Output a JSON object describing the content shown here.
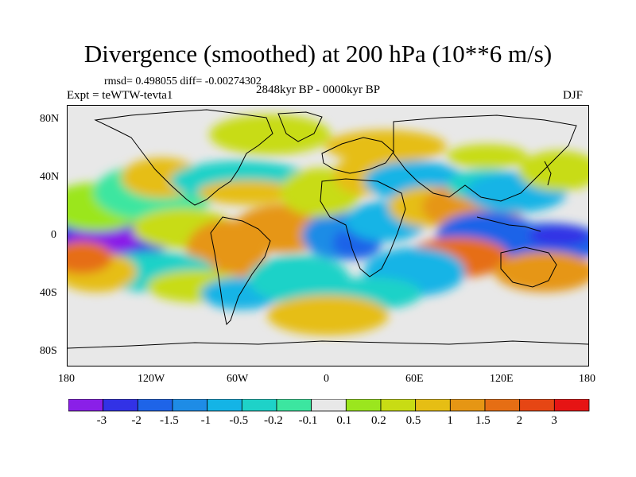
{
  "title": "Divergence (smoothed) at 200 hPa (10**6 m/s)",
  "stats": "rmsd= 0.498055 diff= -0.00274302",
  "experiment": "Expt = teWTW-tevta1",
  "period": "2848kyr BP - 0000kyr BP",
  "season": "DJF",
  "lat_ticks": [
    "80N",
    "40N",
    "0",
    "40S",
    "80S"
  ],
  "lon_ticks": [
    "180",
    "120W",
    "60W",
    "0",
    "60E",
    "120E",
    "180"
  ],
  "colorbar": {
    "labels": [
      "-3",
      "-2",
      "-1.5",
      "-1",
      "-0.5",
      "-0.2",
      "-0.1",
      "0.1",
      "0.2",
      "0.5",
      "1",
      "1.5",
      "2",
      "3"
    ],
    "colors": [
      "#8a1fe8",
      "#3232e6",
      "#1e64e8",
      "#1e8ce6",
      "#14b4e6",
      "#1ed2c8",
      "#3ce6a0",
      "#e8e8e8",
      "#9be61e",
      "#c8dc14",
      "#e6be14",
      "#e69614",
      "#e66e14",
      "#e64614",
      "#e61414"
    ]
  },
  "map": {
    "background": "#e8e8e8",
    "blobs": [
      {
        "lon": -150,
        "lat": 0,
        "rx": 32,
        "ry": 12,
        "level": 1
      },
      {
        "lon": -155,
        "lat": -3,
        "rx": 18,
        "ry": 7,
        "level": 0
      },
      {
        "lon": -160,
        "lat": 20,
        "rx": 25,
        "ry": 12,
        "level": 8
      },
      {
        "lon": -120,
        "lat": 30,
        "rx": 30,
        "ry": 14,
        "level": 6
      },
      {
        "lon": -115,
        "lat": 40,
        "rx": 20,
        "ry": 10,
        "level": 10
      },
      {
        "lon": -60,
        "lat": 38,
        "rx": 35,
        "ry": 10,
        "level": 5
      },
      {
        "lon": -55,
        "lat": 30,
        "rx": 25,
        "ry": 6,
        "level": 10
      },
      {
        "lon": -100,
        "lat": 5,
        "rx": 25,
        "ry": 10,
        "level": 9
      },
      {
        "lon": -70,
        "lat": -10,
        "rx": 20,
        "ry": 15,
        "level": 11
      },
      {
        "lon": -120,
        "lat": -25,
        "rx": 30,
        "ry": 10,
        "level": 5
      },
      {
        "lon": -160,
        "lat": -25,
        "rx": 20,
        "ry": 10,
        "level": 10
      },
      {
        "lon": -90,
        "lat": -35,
        "rx": 25,
        "ry": 8,
        "level": 9
      },
      {
        "lon": -60,
        "lat": -40,
        "rx": 20,
        "ry": 8,
        "level": 4
      },
      {
        "lon": -30,
        "lat": 5,
        "rx": 25,
        "ry": 12,
        "level": 11
      },
      {
        "lon": 10,
        "lat": 0,
        "rx": 20,
        "ry": 12,
        "level": 3
      },
      {
        "lon": 20,
        "lat": -5,
        "rx": 12,
        "ry": 8,
        "level": 2
      },
      {
        "lon": 40,
        "lat": 10,
        "rx": 20,
        "ry": 10,
        "level": 4
      },
      {
        "lon": -5,
        "lat": 30,
        "rx": 20,
        "ry": 12,
        "level": 9
      },
      {
        "lon": 25,
        "lat": 42,
        "rx": 15,
        "ry": 10,
        "level": 10
      },
      {
        "lon": 60,
        "lat": 38,
        "rx": 25,
        "ry": 10,
        "level": 4
      },
      {
        "lon": 70,
        "lat": 20,
        "rx": 20,
        "ry": 10,
        "level": 10
      },
      {
        "lon": 100,
        "lat": 20,
        "rx": 25,
        "ry": 12,
        "level": 11
      },
      {
        "lon": 110,
        "lat": 35,
        "rx": 20,
        "ry": 8,
        "level": 5
      },
      {
        "lon": 130,
        "lat": 30,
        "rx": 25,
        "ry": 10,
        "level": 4
      },
      {
        "lon": 110,
        "lat": 0,
        "rx": 25,
        "ry": 12,
        "level": 2
      },
      {
        "lon": 150,
        "lat": -5,
        "rx": 30,
        "ry": 10,
        "level": 2
      },
      {
        "lon": 160,
        "lat": 0,
        "rx": 15,
        "ry": 5,
        "level": 1
      },
      {
        "lon": 90,
        "lat": -15,
        "rx": 25,
        "ry": 10,
        "level": 12
      },
      {
        "lon": 150,
        "lat": -25,
        "rx": 25,
        "ry": 10,
        "level": 11
      },
      {
        "lon": 60,
        "lat": -25,
        "rx": 25,
        "ry": 12,
        "level": 4
      },
      {
        "lon": 30,
        "lat": -40,
        "rx": 25,
        "ry": 8,
        "level": 5
      },
      {
        "lon": -20,
        "lat": -30,
        "rx": 25,
        "ry": 12,
        "level": 5
      },
      {
        "lon": 0,
        "lat": -55,
        "rx": 30,
        "ry": 10,
        "level": 10
      },
      {
        "lon": -40,
        "lat": 70,
        "rx": 30,
        "ry": 10,
        "level": 9
      },
      {
        "lon": 40,
        "lat": 62,
        "rx": 30,
        "ry": 8,
        "level": 10
      },
      {
        "lon": 110,
        "lat": 55,
        "rx": 20,
        "ry": 6,
        "level": 9
      },
      {
        "lon": 160,
        "lat": 45,
        "rx": 20,
        "ry": 10,
        "level": 9
      },
      {
        "lon": -170,
        "lat": -15,
        "rx": 15,
        "ry": 8,
        "level": 12
      }
    ]
  }
}
